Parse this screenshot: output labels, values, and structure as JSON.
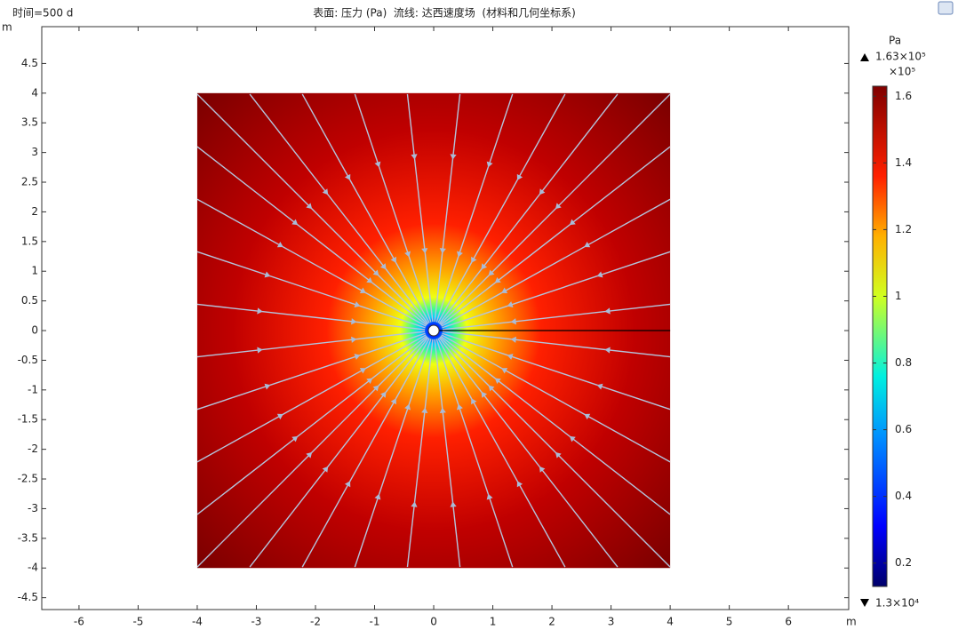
{
  "chart_data": {
    "type": "heatmap",
    "title": "表面: 压力 (Pa)  流线: 达西速度场  (材料和几何坐标系)",
    "time_label": "时间=500 d",
    "x_unit": "m",
    "y_unit": "m",
    "xlim": [
      -6.63,
      7.02
    ],
    "ylim": [
      -4.7,
      5.12
    ],
    "xticks": [
      -6,
      -5,
      -4,
      -3,
      -2,
      -1,
      0,
      1,
      2,
      3,
      4,
      5,
      6
    ],
    "yticks": [
      -4.5,
      -4,
      -3.5,
      -3,
      -2.5,
      -2,
      -1.5,
      -1,
      -0.5,
      0,
      0.5,
      1,
      1.5,
      2,
      2.5,
      3,
      3.5,
      4,
      4.5
    ],
    "surface_x": [
      -4,
      4
    ],
    "surface_y": [
      -4,
      4
    ],
    "colorbar": {
      "unit": "Pa",
      "multiplier": "×10⁵",
      "lim": [
        0.13,
        1.63
      ],
      "ticks": [
        0.2,
        0.4,
        0.6,
        0.8,
        1,
        1.2,
        1.4,
        1.6
      ],
      "max": {
        "value": 1.63,
        "label": "1.63×10⁵"
      },
      "min": {
        "value": 0.13,
        "label": "1.3×10⁴"
      }
    }
  }
}
